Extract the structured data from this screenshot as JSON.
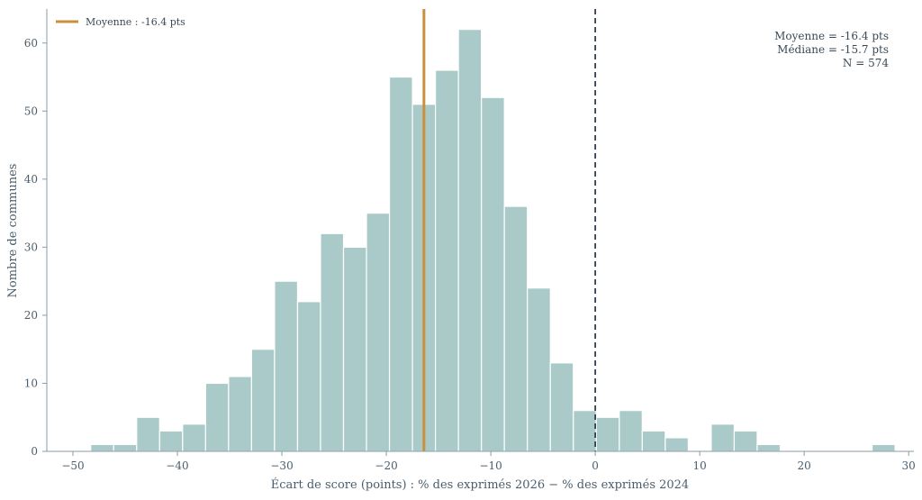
{
  "chart_data": {
    "type": "histogram",
    "xlabel": "Écart de score (points) : % des exprimés 2026 − % des exprimés 2024",
    "ylabel": "Nombre de communes",
    "xlim": [
      -52.5,
      30.5
    ],
    "ylim": [
      0,
      65
    ],
    "xticks": [
      -50,
      -40,
      -30,
      -20,
      -10,
      0,
      10,
      20,
      30
    ],
    "xtick_labels": [
      "−50",
      "−40",
      "−30",
      "−20",
      "−10",
      "0",
      "10",
      "20",
      "30"
    ],
    "yticks": [
      0,
      10,
      20,
      30,
      40,
      50,
      60
    ],
    "ytick_labels": [
      "0",
      "10",
      "20",
      "30",
      "40",
      "50",
      "60"
    ],
    "bin_edges": [
      -48.3,
      -46.1,
      -43.9,
      -41.7,
      -39.5,
      -37.3,
      -35.1,
      -32.9,
      -30.7,
      -28.5,
      -26.3,
      -24.1,
      -21.9,
      -19.7,
      -17.5,
      -15.3,
      -13.1,
      -10.9,
      -8.7,
      -6.5,
      -4.3,
      -2.1,
      0.1,
      2.3,
      4.5,
      6.7,
      8.9,
      11.1,
      13.3,
      15.5,
      17.7,
      19.9,
      22.1,
      24.3,
      26.5,
      28.7
    ],
    "counts": [
      1,
      1,
      5,
      3,
      4,
      10,
      11,
      15,
      25,
      22,
      32,
      30,
      35,
      55,
      51,
      56,
      62,
      52,
      36,
      24,
      13,
      6,
      5,
      6,
      3,
      2,
      0,
      4,
      3,
      1,
      0,
      0,
      0,
      0,
      1
    ],
    "bar_color": "#a9cac8",
    "bar_edge_color": "#ffffff",
    "mean_line": {
      "value": -16.4,
      "color": "#c9913a",
      "style": "solid"
    },
    "zero_line": {
      "value": 0,
      "color": "#2e3e4e",
      "style": "dashed"
    },
    "legend": {
      "position": "top-left",
      "entries": [
        {
          "label": "Moyenne : -16.4 pts",
          "color": "#c9913a"
        }
      ]
    },
    "annotation": {
      "position": "top-right",
      "lines": [
        "Moyenne = -16.4 pts",
        "Médiane = -15.7 pts",
        "N = 574"
      ]
    },
    "axis_color": "#8a9ba6",
    "text_color": "#4a5d6b",
    "grid": false
  }
}
